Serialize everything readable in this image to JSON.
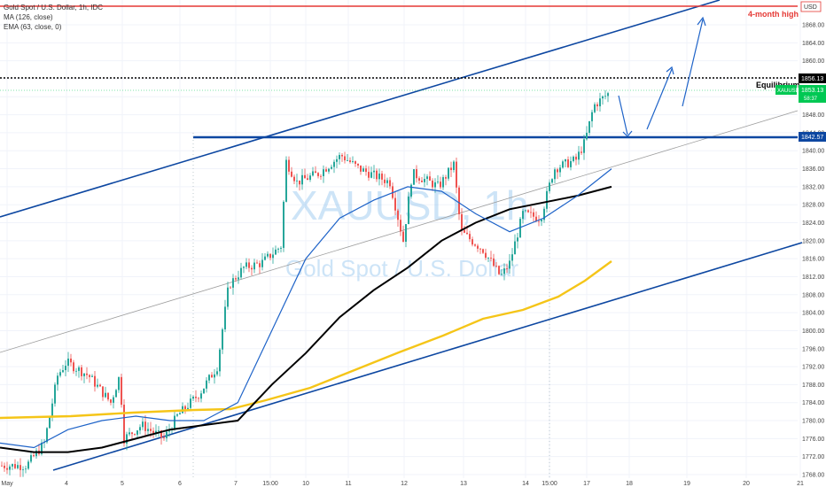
{
  "legend": {
    "line1": "Gold Spot / U.S. Dollar, 1h, IDC",
    "line2": "MA (126, close)",
    "line3": "EMA (63, close, 0)"
  },
  "watermark": {
    "symbol": "XAUUSD, 1h",
    "name": "Gold Spot / U.S. Dollar"
  },
  "currency_badge": "USD",
  "annotations": {
    "four_month_high": "4-month high",
    "equilibrium": "Equilibrium"
  },
  "price_badges": {
    "upper": "1856.13",
    "last": "1853.13",
    "last_sub": "58:37",
    "last_symbol": "XAUUSD",
    "level": "1842.57"
  },
  "colors": {
    "up_candle": "#26a69a",
    "down_candle": "#ef5350",
    "channel": "#0d47a1",
    "ma126": "#000000",
    "ema63": "#1e63c8",
    "slow_ma": "#f5c518",
    "resistance_red": "#e53935",
    "price_green": "#00c853"
  },
  "chart_data": {
    "type": "candlestick",
    "title": "Gold Spot / U.S. Dollar, 1h, IDC",
    "x_tick_labels": [
      "May",
      "4",
      "5",
      "6",
      "7",
      "15:00",
      "10",
      "11",
      "12",
      "13",
      "14",
      "15:00",
      "17",
      "18",
      "19",
      "20",
      "21"
    ],
    "y_tick_labels": [
      "1768.00",
      "1772.00",
      "1776.00",
      "1780.00",
      "1784.00",
      "1788.00",
      "1792.00",
      "1796.00",
      "1800.00",
      "1804.00",
      "1808.00",
      "1812.00",
      "1816.00",
      "1820.00",
      "1824.00",
      "1828.00",
      "1832.00",
      "1836.00",
      "1840.00",
      "1844.00",
      "1848.00",
      "1852.00",
      "1856.00",
      "1860.00",
      "1864.00",
      "1868.00"
    ],
    "ylim": [
      1766,
      1872
    ],
    "levels": {
      "four_month_high": 1871.8,
      "equilibrium": 1856.13,
      "resistance": 1842.57,
      "last_price": 1853.13
    },
    "series": [
      {
        "name": "MA (126, close)",
        "values": [
          1774,
          1773,
          1773,
          1774,
          1776,
          1778,
          1779,
          1780,
          1788,
          1795,
          1803,
          1809,
          1814,
          1820,
          1824,
          1827,
          1828.5,
          1830,
          1832
        ]
      },
      {
        "name": "EMA (63, close, 0)",
        "values": [
          1775,
          1774,
          1778,
          1780,
          1781,
          1780,
          1780,
          1784,
          1800,
          1816,
          1825,
          1829,
          1832,
          1831,
          1826,
          1822,
          1825,
          1830,
          1836
        ]
      }
    ]
  }
}
